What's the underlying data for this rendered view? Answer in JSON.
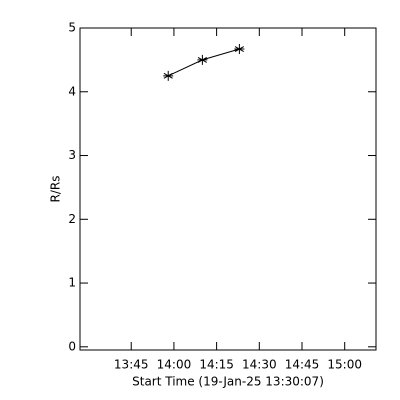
{
  "chart_data": {
    "type": "line",
    "xlabel": "Start Time (19-Jan-25 13:30:07)",
    "ylabel": "R/Rs",
    "x": [
      "13:58",
      "14:10",
      "14:23"
    ],
    "series": [
      {
        "color": "#000000",
        "values": [
          4.25,
          4.5,
          4.67
        ]
      }
    ],
    "xlim": [
      "13:27",
      "15:11"
    ],
    "xticks": [
      "13:45",
      "14:00",
      "14:15",
      "14:30",
      "14:45",
      "15:00"
    ],
    "ylim": [
      -0.05,
      5
    ],
    "yticks": [
      0,
      1,
      2,
      3,
      4,
      5
    ],
    "marker": "asterisk"
  }
}
